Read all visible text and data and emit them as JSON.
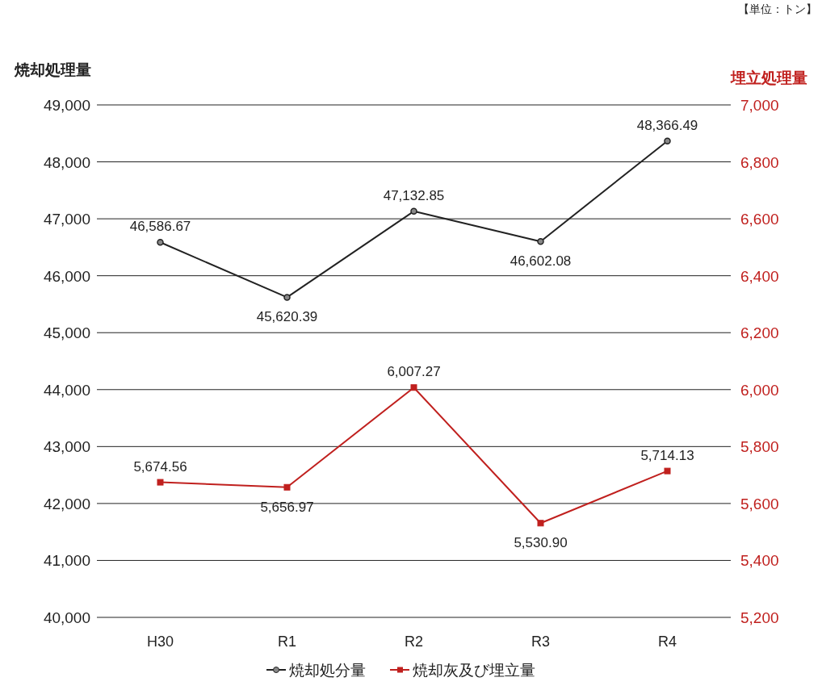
{
  "chart_data": {
    "type": "line",
    "categories": [
      "H30",
      "R1",
      "R2",
      "R3",
      "R4"
    ],
    "series": [
      {
        "name": "焼却処分量",
        "color": "#222222",
        "marker": "circle",
        "values": [
          46586.67,
          45620.39,
          47132.85,
          46602.08,
          48366.49
        ],
        "value_labels": [
          "46,586.67",
          "45,620.39",
          "47,132.85",
          "46,602.08",
          "48,366.49"
        ]
      },
      {
        "name": "焼却灰及び埋立量",
        "color": "#c0201e",
        "marker": "square",
        "axis": "y2",
        "values": [
          5674.56,
          5656.97,
          6007.27,
          5530.9,
          5714.13
        ],
        "value_labels": [
          "5,674.56",
          "5,656.97",
          "6,007.27",
          "5,530.90",
          "5,714.13"
        ]
      }
    ],
    "ylabel": "焼却処理量",
    "y2label": "埋立処理量",
    "annotations": [
      "【単位：トン】"
    ],
    "ylim": [
      40000,
      49000
    ],
    "yticks": [
      {
        "value": 40000,
        "label": "40,000"
      },
      {
        "value": 41000,
        "label": "41,000"
      },
      {
        "value": 42000,
        "label": "42,000"
      },
      {
        "value": 43000,
        "label": "43,000"
      },
      {
        "value": 44000,
        "label": "44,000"
      },
      {
        "value": 45000,
        "label": "45,000"
      },
      {
        "value": 46000,
        "label": "46,000"
      },
      {
        "value": 47000,
        "label": "47,000"
      },
      {
        "value": 48000,
        "label": "48,000"
      },
      {
        "value": 49000,
        "label": "49,000"
      }
    ],
    "y2lim": [
      5200,
      7000
    ],
    "y2ticks": [
      {
        "value": 5200,
        "label": "5,200"
      },
      {
        "value": 5400,
        "label": "5,400"
      },
      {
        "value": 5600,
        "label": "5,600"
      },
      {
        "value": 5800,
        "label": "5,800"
      },
      {
        "value": 6000,
        "label": "6,000"
      },
      {
        "value": 6200,
        "label": "6,200"
      },
      {
        "value": 6400,
        "label": "6,400"
      },
      {
        "value": 6600,
        "label": "6,600"
      },
      {
        "value": 6800,
        "label": "6,800"
      },
      {
        "value": 7000,
        "label": "7,000"
      }
    ],
    "grid": "y",
    "legend": "bottom",
    "line_style": "solid"
  }
}
